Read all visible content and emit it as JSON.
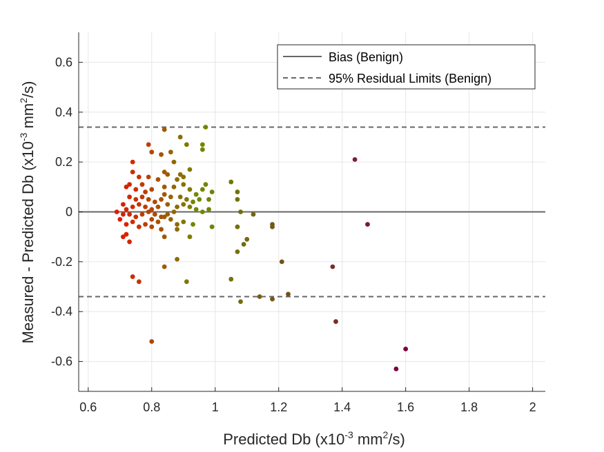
{
  "chart_data": {
    "type": "scatter",
    "xlabel": {
      "base": "Predicted Db (x10",
      "exp1": "-3",
      "mid": " mm",
      "exp2": "2",
      "end": "/s)"
    },
    "ylabel": {
      "base": "Measured - Predicted Db (x10",
      "exp1": "-3",
      "mid": " mm",
      "exp2": "2",
      "end": "/s)"
    },
    "xlim": [
      0.57,
      2.04
    ],
    "ylim": [
      -0.72,
      0.72
    ],
    "xticks": [
      0.6,
      0.8,
      1,
      1.2,
      1.4,
      1.6,
      1.8,
      2
    ],
    "xtick_labels": [
      "0.6",
      "0.8",
      "1",
      "1.2",
      "1.4",
      "1.6",
      "1.8",
      "2"
    ],
    "yticks": [
      -0.6,
      -0.4,
      -0.2,
      0,
      0.2,
      0.4,
      0.6
    ],
    "ytick_labels": [
      "-0.6",
      "-0.4",
      "-0.2",
      "0",
      "0.2",
      "0.4",
      "0.6"
    ],
    "grid": true,
    "legend_position": "top-right",
    "lines": [
      {
        "name": "Bias (Benign)",
        "y": 0,
        "style": "solid",
        "color": "#666666"
      },
      {
        "name": "95% Residual Limits (Benign)",
        "y": 0.34,
        "style": "dashed",
        "color": "#666666"
      },
      {
        "y": -0.34,
        "style": "dashed",
        "color": "#666666"
      }
    ],
    "point_colors": {
      "low_db": "#e01a00",
      "mid_db": "#6f8a00",
      "high_db": "#7a0040",
      "scale_note_values": [
        0.7,
        0.95,
        1.6
      ]
    },
    "points": [
      [
        0.84,
        0.33
      ],
      [
        0.97,
        0.34
      ],
      [
        0.89,
        0.3
      ],
      [
        0.91,
        0.27
      ],
      [
        0.96,
        0.27
      ],
      [
        0.96,
        0.25
      ],
      [
        0.79,
        0.27
      ],
      [
        0.8,
        0.24
      ],
      [
        0.86,
        0.24
      ],
      [
        0.74,
        0.2
      ],
      [
        0.83,
        0.23
      ],
      [
        0.87,
        0.2
      ],
      [
        0.84,
        0.16
      ],
      [
        0.85,
        0.15
      ],
      [
        0.89,
        0.15
      ],
      [
        0.92,
        0.17
      ],
      [
        0.9,
        0.14
      ],
      [
        0.88,
        0.13
      ],
      [
        0.82,
        0.13
      ],
      [
        0.79,
        0.14
      ],
      [
        0.76,
        0.14
      ],
      [
        0.74,
        0.16
      ],
      [
        0.77,
        0.11
      ],
      [
        0.73,
        0.11
      ],
      [
        0.72,
        0.1
      ],
      [
        0.75,
        0.09
      ],
      [
        0.78,
        0.08
      ],
      [
        0.8,
        0.09
      ],
      [
        0.84,
        0.1
      ],
      [
        0.87,
        0.1
      ],
      [
        0.9,
        0.11
      ],
      [
        0.92,
        0.09
      ],
      [
        0.94,
        0.07
      ],
      [
        0.96,
        0.09
      ],
      [
        0.97,
        0.11
      ],
      [
        0.99,
        0.08
      ],
      [
        0.98,
        0.05
      ],
      [
        0.95,
        0.05
      ],
      [
        0.93,
        0.04
      ],
      [
        0.91,
        0.05
      ],
      [
        0.89,
        0.06
      ],
      [
        0.86,
        0.06
      ],
      [
        0.84,
        0.07
      ],
      [
        0.83,
        0.05
      ],
      [
        0.81,
        0.04
      ],
      [
        0.79,
        0.05
      ],
      [
        0.77,
        0.06
      ],
      [
        0.75,
        0.05
      ],
      [
        0.73,
        0.06
      ],
      [
        0.71,
        0.03
      ],
      [
        0.72,
        0.01
      ],
      [
        0.74,
        0.02
      ],
      [
        0.76,
        0.03
      ],
      [
        0.78,
        0.02
      ],
      [
        0.8,
        0.01
      ],
      [
        0.82,
        0.02
      ],
      [
        0.85,
        0.03
      ],
      [
        0.88,
        0.02
      ],
      [
        0.9,
        0.03
      ],
      [
        0.92,
        0.02
      ],
      [
        0.94,
        0.01
      ],
      [
        0.96,
        0.0
      ],
      [
        0.98,
        0.01
      ],
      [
        0.87,
        0.0
      ],
      [
        0.85,
        -0.01
      ],
      [
        0.83,
        -0.02
      ],
      [
        0.81,
        -0.01
      ],
      [
        0.79,
        0.0
      ],
      [
        0.77,
        -0.01
      ],
      [
        0.75,
        -0.02
      ],
      [
        0.73,
        -0.01
      ],
      [
        0.71,
        -0.01
      ],
      [
        0.69,
        0.0
      ],
      [
        0.7,
        -0.03
      ],
      [
        0.72,
        -0.05
      ],
      [
        0.74,
        -0.04
      ],
      [
        0.76,
        -0.06
      ],
      [
        0.78,
        -0.05
      ],
      [
        0.8,
        -0.03
      ],
      [
        0.82,
        -0.04
      ],
      [
        0.84,
        -0.02
      ],
      [
        0.86,
        -0.03
      ],
      [
        0.88,
        -0.05
      ],
      [
        0.9,
        -0.04
      ],
      [
        0.93,
        -0.05
      ],
      [
        0.99,
        -0.06
      ],
      [
        0.71,
        -0.1
      ],
      [
        0.73,
        -0.12
      ],
      [
        0.72,
        -0.09
      ],
      [
        0.8,
        -0.06
      ],
      [
        0.83,
        -0.07
      ],
      [
        0.84,
        -0.1
      ],
      [
        0.88,
        -0.07
      ],
      [
        0.92,
        -0.1
      ],
      [
        0.74,
        -0.26
      ],
      [
        0.76,
        -0.28
      ],
      [
        0.84,
        -0.22
      ],
      [
        0.88,
        -0.19
      ],
      [
        0.91,
        -0.28
      ],
      [
        0.8,
        -0.52
      ],
      [
        1.05,
        0.12
      ],
      [
        1.07,
        0.08
      ],
      [
        1.07,
        0.05
      ],
      [
        1.08,
        0.0
      ],
      [
        1.07,
        -0.06
      ],
      [
        1.09,
        -0.13
      ],
      [
        1.1,
        -0.11
      ],
      [
        1.07,
        -0.16
      ],
      [
        1.12,
        -0.01
      ],
      [
        1.18,
        -0.06
      ],
      [
        1.18,
        -0.05
      ],
      [
        1.21,
        -0.2
      ],
      [
        1.05,
        -0.27
      ],
      [
        1.08,
        -0.36
      ],
      [
        1.14,
        -0.34
      ],
      [
        1.18,
        -0.35
      ],
      [
        1.23,
        -0.33
      ],
      [
        1.38,
        -0.44
      ],
      [
        1.37,
        -0.22
      ],
      [
        1.44,
        0.21
      ],
      [
        1.48,
        -0.05
      ],
      [
        1.57,
        -0.63
      ],
      [
        1.6,
        -0.55
      ]
    ]
  },
  "legend": {
    "bias_label": "Bias (Benign)",
    "limits_label": "95% Residual Limits (Benign)"
  }
}
